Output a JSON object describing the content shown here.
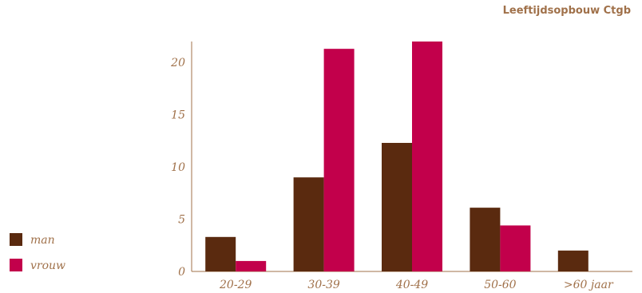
{
  "chart_data": {
    "type": "bar",
    "title": "Leeftijdsopbouw Ctgb",
    "xlabel": "",
    "ylabel": "",
    "categories": [
      "20-29",
      "30-39",
      "40-49",
      "50-60",
      ">60 jaar"
    ],
    "series": [
      {
        "name": "man",
        "color": "#5a2a0f",
        "values": [
          3.3,
          9.0,
          12.3,
          6.1,
          2.0
        ]
      },
      {
        "name": "vrouw",
        "color": "#c2004b",
        "values": [
          1.0,
          21.3,
          22.0,
          4.4,
          0
        ]
      }
    ],
    "ylim": [
      0,
      22
    ],
    "yticks": [
      0,
      5,
      10,
      15,
      20
    ],
    "grid": false,
    "legend_position": "bottom-left"
  }
}
